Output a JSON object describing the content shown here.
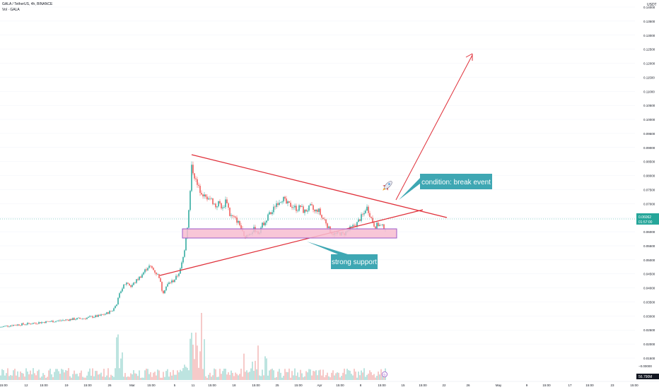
{
  "header": {
    "symbol_line": "GALA / TetherUS, 4h, BINANCE",
    "volume_line": "Vol · GALA",
    "currency": "USDT"
  },
  "chart_data": {
    "type": "candlestick",
    "title": "GALA / TetherUS, 4h, BINANCE",
    "currency": "USDT",
    "ylim": [
      0.015,
      0.14
    ],
    "y_ticks": [
      "0.14000",
      "0.13500",
      "0.13000",
      "0.12500",
      "0.12000",
      "0.11500",
      "0.11000",
      "0.10500",
      "0.10000",
      "0.09500",
      "0.09000",
      "0.08500",
      "0.08000",
      "0.07500",
      "0.07000",
      "0.06500",
      "0.06000",
      "0.05500",
      "0.05000",
      "0.04500",
      "0.04000",
      "0.03500",
      "0.03000",
      "0.02500",
      "0.02000",
      "0.01500"
    ],
    "volume_min_label": "−0.00000",
    "x_ticks": [
      {
        "label": "15:00",
        "x": 5
      },
      {
        "label": "12",
        "x": 37
      },
      {
        "label": "15:00",
        "x": 62
      },
      {
        "label": "19",
        "x": 94
      },
      {
        "label": "15:00",
        "x": 124
      },
      {
        "label": "26",
        "x": 155
      },
      {
        "label": "Mar",
        "x": 187
      },
      {
        "label": "15:00",
        "x": 214
      },
      {
        "label": "5",
        "x": 247
      },
      {
        "label": "11",
        "x": 273
      },
      {
        "label": "15:00",
        "x": 300
      },
      {
        "label": "18",
        "x": 331
      },
      {
        "label": "15:00",
        "x": 362
      },
      {
        "label": "25",
        "x": 392
      },
      {
        "label": "15:00",
        "x": 422
      },
      {
        "label": "Apr",
        "x": 452
      },
      {
        "label": "15:00",
        "x": 481
      },
      {
        "label": "8",
        "x": 510
      },
      {
        "label": "15:00",
        "x": 540
      },
      {
        "label": "15",
        "x": 570
      },
      {
        "label": "15:00",
        "x": 598
      },
      {
        "label": "22",
        "x": 628
      },
      {
        "label": "26",
        "x": 662
      },
      {
        "label": "May",
        "x": 705
      },
      {
        "label": "9",
        "x": 745
      },
      {
        "label": "15:00",
        "x": 773
      },
      {
        "label": "17",
        "x": 806
      },
      {
        "label": "15:00",
        "x": 834
      },
      {
        "label": "23",
        "x": 866
      },
      {
        "label": "15:00",
        "x": 897
      }
    ],
    "series": [
      {
        "name": "GALA / TetherUS",
        "points": [
          [
            0,
            0.026
          ],
          [
            10,
            0.0265
          ],
          [
            20,
            0.0268
          ],
          [
            30,
            0.027
          ],
          [
            40,
            0.0272
          ],
          [
            50,
            0.0275
          ],
          [
            60,
            0.0278
          ],
          [
            70,
            0.028
          ],
          [
            80,
            0.0282
          ],
          [
            90,
            0.0285
          ],
          [
            100,
            0.0288
          ],
          [
            110,
            0.029
          ],
          [
            120,
            0.0292
          ],
          [
            130,
            0.0297
          ],
          [
            140,
            0.03
          ],
          [
            150,
            0.0308
          ],
          [
            160,
            0.0322
          ],
          [
            165,
            0.0345
          ],
          [
            170,
            0.0385
          ],
          [
            175,
            0.041
          ],
          [
            180,
            0.042
          ],
          [
            185,
            0.0405
          ],
          [
            190,
            0.0418
          ],
          [
            195,
            0.0432
          ],
          [
            200,
            0.0445
          ],
          [
            205,
            0.0462
          ],
          [
            210,
            0.0478
          ],
          [
            215,
            0.047
          ],
          [
            220,
            0.0455
          ],
          [
            225,
            0.044
          ],
          [
            230,
            0.0382
          ],
          [
            235,
            0.0405
          ],
          [
            240,
            0.042
          ],
          [
            245,
            0.0425
          ],
          [
            250,
            0.044
          ],
          [
            255,
            0.0465
          ],
          [
            260,
            0.052
          ],
          [
            265,
            0.062
          ],
          [
            268,
            0.07
          ],
          [
            271,
            0.083
          ],
          [
            274,
            0.081
          ],
          [
            278,
            0.077
          ],
          [
            282,
            0.075
          ],
          [
            286,
            0.074
          ],
          [
            290,
            0.072
          ],
          [
            295,
            0.0725
          ],
          [
            300,
            0.071
          ],
          [
            305,
            0.069
          ],
          [
            310,
            0.0705
          ],
          [
            315,
            0.068
          ],
          [
            320,
            0.072
          ],
          [
            325,
            0.066
          ],
          [
            330,
            0.065
          ],
          [
            335,
            0.064
          ],
          [
            340,
            0.062
          ],
          [
            345,
            0.058
          ],
          [
            350,
            0.059
          ],
          [
            355,
            0.06
          ],
          [
            360,
            0.061
          ],
          [
            365,
            0.0595
          ],
          [
            370,
            0.062
          ],
          [
            375,
            0.064
          ],
          [
            380,
            0.066
          ],
          [
            385,
            0.067
          ],
          [
            390,
            0.07
          ],
          [
            395,
            0.071
          ],
          [
            400,
            0.072
          ],
          [
            405,
            0.07
          ],
          [
            410,
            0.0695
          ],
          [
            415,
            0.069
          ],
          [
            420,
            0.068
          ],
          [
            425,
            0.069
          ],
          [
            430,
            0.067
          ],
          [
            435,
            0.068
          ],
          [
            440,
            0.069
          ],
          [
            445,
            0.067
          ],
          [
            450,
            0.068
          ],
          [
            455,
            0.065
          ],
          [
            460,
            0.064
          ],
          [
            465,
            0.061
          ],
          [
            470,
            0.0595
          ],
          [
            475,
            0.059
          ],
          [
            480,
            0.0595
          ],
          [
            485,
            0.059
          ],
          [
            490,
            0.06
          ],
          [
            495,
            0.061
          ],
          [
            500,
            0.062
          ],
          [
            505,
            0.063
          ],
          [
            510,
            0.065
          ],
          [
            515,
            0.0665
          ],
          [
            518,
            0.069
          ],
          [
            522,
            0.067
          ],
          [
            526,
            0.064
          ],
          [
            530,
            0.062
          ],
          [
            535,
            0.0625
          ],
          [
            540,
            0.0618
          ],
          [
            545,
            0.0615
          ]
        ]
      }
    ],
    "current_price_label": "0.06062",
    "countdown_label": "01:57:00",
    "volume_label": "56.790M",
    "annotations": [
      {
        "text": "condition: break event",
        "kind": "callout"
      },
      {
        "text": "strong support",
        "kind": "callout"
      }
    ],
    "colors": {
      "up": "#26a69a",
      "down": "#ef5350",
      "drawing": "#e0303a",
      "callout": "#3ea7b3",
      "support_fill": "#f7bcd0",
      "support_border": "#9b59c8"
    }
  }
}
